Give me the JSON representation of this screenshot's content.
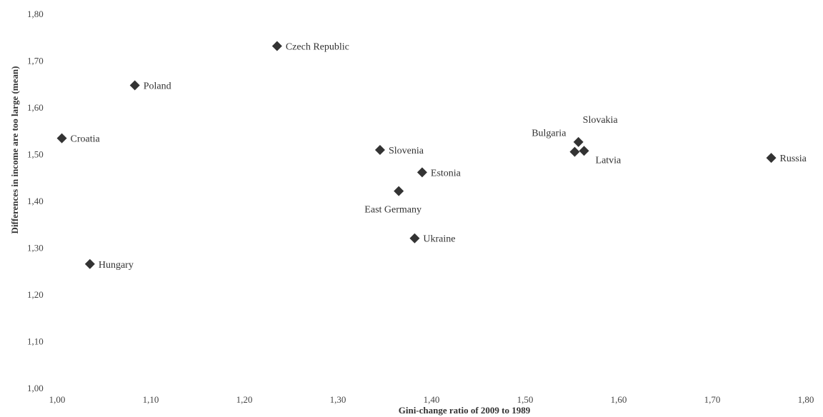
{
  "chart_data": {
    "type": "scatter",
    "title": "",
    "xlabel": "Gini-change ratio of 2009 to 1989",
    "ylabel": "Differences in income are too large (mean)",
    "xlim": [
      1.0,
      1.8
    ],
    "ylim": [
      1.0,
      1.8
    ],
    "x_ticks": [
      "1,00",
      "1,10",
      "1,20",
      "1,30",
      "1,40",
      "1,50",
      "1,60",
      "1,70",
      "1,80"
    ],
    "y_ticks": [
      "1,00",
      "1,10",
      "1,20",
      "1,30",
      "1,40",
      "1,50",
      "1,60",
      "1,70",
      "1,80"
    ],
    "grid": false,
    "legend": "none",
    "marker": "diamond",
    "marker_color": "#333333",
    "points": [
      {
        "label": "Czech Republic",
        "x": 1.235,
        "y": 1.732,
        "label_pos": "right"
      },
      {
        "label": "Poland",
        "x": 1.083,
        "y": 1.648,
        "label_pos": "right"
      },
      {
        "label": "Croatia",
        "x": 1.005,
        "y": 1.535,
        "label_pos": "right"
      },
      {
        "label": "Slovenia",
        "x": 1.345,
        "y": 1.51,
        "label_pos": "right"
      },
      {
        "label": "Estonia",
        "x": 1.39,
        "y": 1.462,
        "label_pos": "right"
      },
      {
        "label": "East Germany",
        "x": 1.365,
        "y": 1.422,
        "label_pos": "below"
      },
      {
        "label": "Ukraine",
        "x": 1.382,
        "y": 1.321,
        "label_pos": "right"
      },
      {
        "label": "Hungary",
        "x": 1.035,
        "y": 1.266,
        "label_pos": "right"
      },
      {
        "label": "Bulgaria",
        "x": 1.553,
        "y": 1.506,
        "label_pos": "above-left"
      },
      {
        "label": "Slovakia",
        "x": 1.557,
        "y": 1.527,
        "label_pos": "above-right"
      },
      {
        "label": "Latvia",
        "x": 1.563,
        "y": 1.508,
        "label_pos": "below-right"
      },
      {
        "label": "Russia",
        "x": 1.763,
        "y": 1.493,
        "label_pos": "right"
      }
    ]
  }
}
